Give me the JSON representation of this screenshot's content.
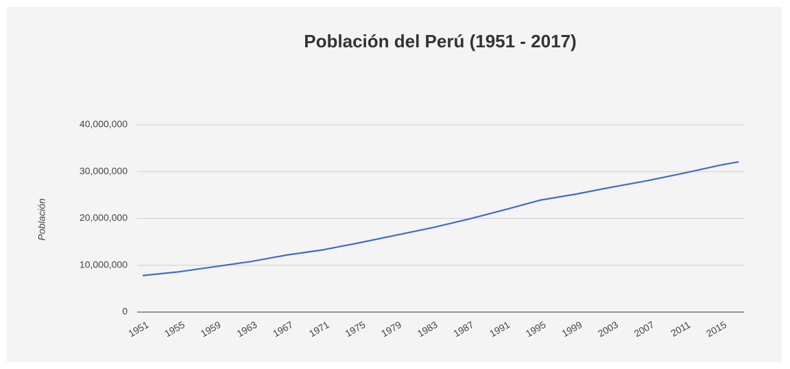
{
  "chart_data": {
    "type": "line",
    "title": "Población del Perú (1951 - 2017)",
    "y_label": "Población",
    "x": [
      1951,
      1955,
      1959,
      1963,
      1967,
      1971,
      1975,
      1979,
      1983,
      1987,
      1991,
      1995,
      1999,
      2003,
      2007,
      2011,
      2015,
      2017
    ],
    "series": [
      {
        "name": "Población",
        "color": "#3d6cc8",
        "values": [
          7800000,
          8600000,
          9700000,
          10800000,
          12200000,
          13300000,
          14800000,
          16400000,
          18000000,
          19800000,
          21800000,
          23900000,
          25200000,
          26700000,
          28100000,
          29700000,
          31400000,
          32100000
        ]
      }
    ],
    "xlim": [
      1951,
      2017
    ],
    "xticks": [
      1951,
      1955,
      1959,
      1963,
      1967,
      1971,
      1975,
      1979,
      1983,
      1987,
      1991,
      1995,
      1999,
      2003,
      2007,
      2011,
      2015
    ],
    "ylim": [
      0,
      40000000
    ],
    "yticks": [
      0,
      {
        "value": 10000000,
        "label": "10,000,000"
      },
      {
        "value": 20000000,
        "label": "20,000,000"
      },
      {
        "value": 30000000,
        "label": "30,000,000"
      },
      {
        "value": 40000000,
        "label": "40,000,000"
      }
    ],
    "grid": true
  }
}
